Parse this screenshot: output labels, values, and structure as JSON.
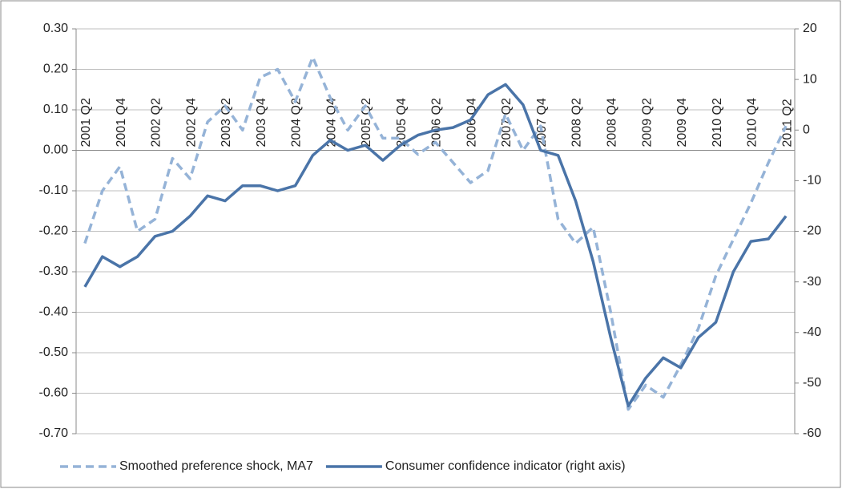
{
  "chart_data": {
    "type": "line",
    "categories": [
      "2001 Q2",
      null,
      "2001 Q4",
      null,
      "2002 Q2",
      null,
      "2002 Q4",
      null,
      "2003 Q2",
      null,
      "2003 Q4",
      null,
      "2004 Q2",
      null,
      "2004 Q4",
      null,
      "2005 Q2",
      null,
      "2005 Q4",
      null,
      "2006 Q2",
      null,
      "2006 Q4",
      null,
      "2007 Q2",
      null,
      "2007 Q4",
      null,
      "2008 Q2",
      null,
      "2008 Q4",
      null,
      "2009 Q2",
      null,
      "2009 Q4",
      null,
      "2010 Q2",
      null,
      "2010 Q4",
      null,
      "2011 Q2"
    ],
    "series": [
      {
        "name": "Smoothed preference shock, MA7",
        "color": "#95b3d7",
        "dash": true,
        "values": [
          -0.23,
          -0.1,
          -0.04,
          -0.2,
          -0.17,
          -0.02,
          -0.07,
          0.07,
          0.11,
          0.05,
          0.18,
          0.2,
          0.12,
          0.23,
          0.13,
          0.05,
          0.11,
          0.03,
          0.03,
          -0.01,
          0.02,
          -0.03,
          -0.08,
          -0.05,
          0.09,
          0.0,
          0.06,
          -0.17,
          -0.23,
          -0.19,
          -0.4,
          -0.64,
          -0.58,
          -0.61,
          -0.53,
          -0.44,
          -0.31,
          -0.22,
          -0.13,
          -0.03,
          0.06
        ]
      },
      {
        "name": "Consumer confidence indicator (right axis)",
        "color": "#4a74a8",
        "axis": "y2",
        "values": [
          -31,
          -25,
          -27,
          -25,
          -21,
          -20,
          -17,
          -13,
          -14,
          -11,
          -11,
          -12,
          -11,
          -5,
          -2,
          -4,
          -3,
          -6,
          -3,
          -1,
          0,
          0.5,
          2,
          7,
          9,
          5,
          -4,
          -5,
          -14,
          -26,
          -41,
          -54.5,
          -49,
          -45,
          -47,
          -41,
          -38,
          -28,
          -22,
          -21.5,
          -17
        ]
      }
    ],
    "ylim": [
      -0.7,
      0.3
    ],
    "yticks": [
      {
        "value": -0.7,
        "label": "-0.70"
      },
      {
        "value": -0.6,
        "label": "-0.60"
      },
      {
        "value": -0.5,
        "label": "-0.50"
      },
      {
        "value": -0.4,
        "label": "-0.40"
      },
      {
        "value": -0.3,
        "label": "-0.30"
      },
      {
        "value": -0.2,
        "label": "-0.20"
      },
      {
        "value": -0.1,
        "label": "-0.10"
      },
      {
        "value": 0,
        "label": "0.00"
      },
      {
        "value": 0.1,
        "label": "0.10"
      },
      {
        "value": 0.2,
        "label": "0.20"
      },
      {
        "value": 0.3,
        "label": "0.30"
      }
    ],
    "y2lim": [
      -60,
      20
    ],
    "y2ticks": [
      -60,
      -50,
      -40,
      -30,
      -20,
      -10,
      0,
      10,
      20
    ],
    "grid": true,
    "legend": "bottom"
  }
}
